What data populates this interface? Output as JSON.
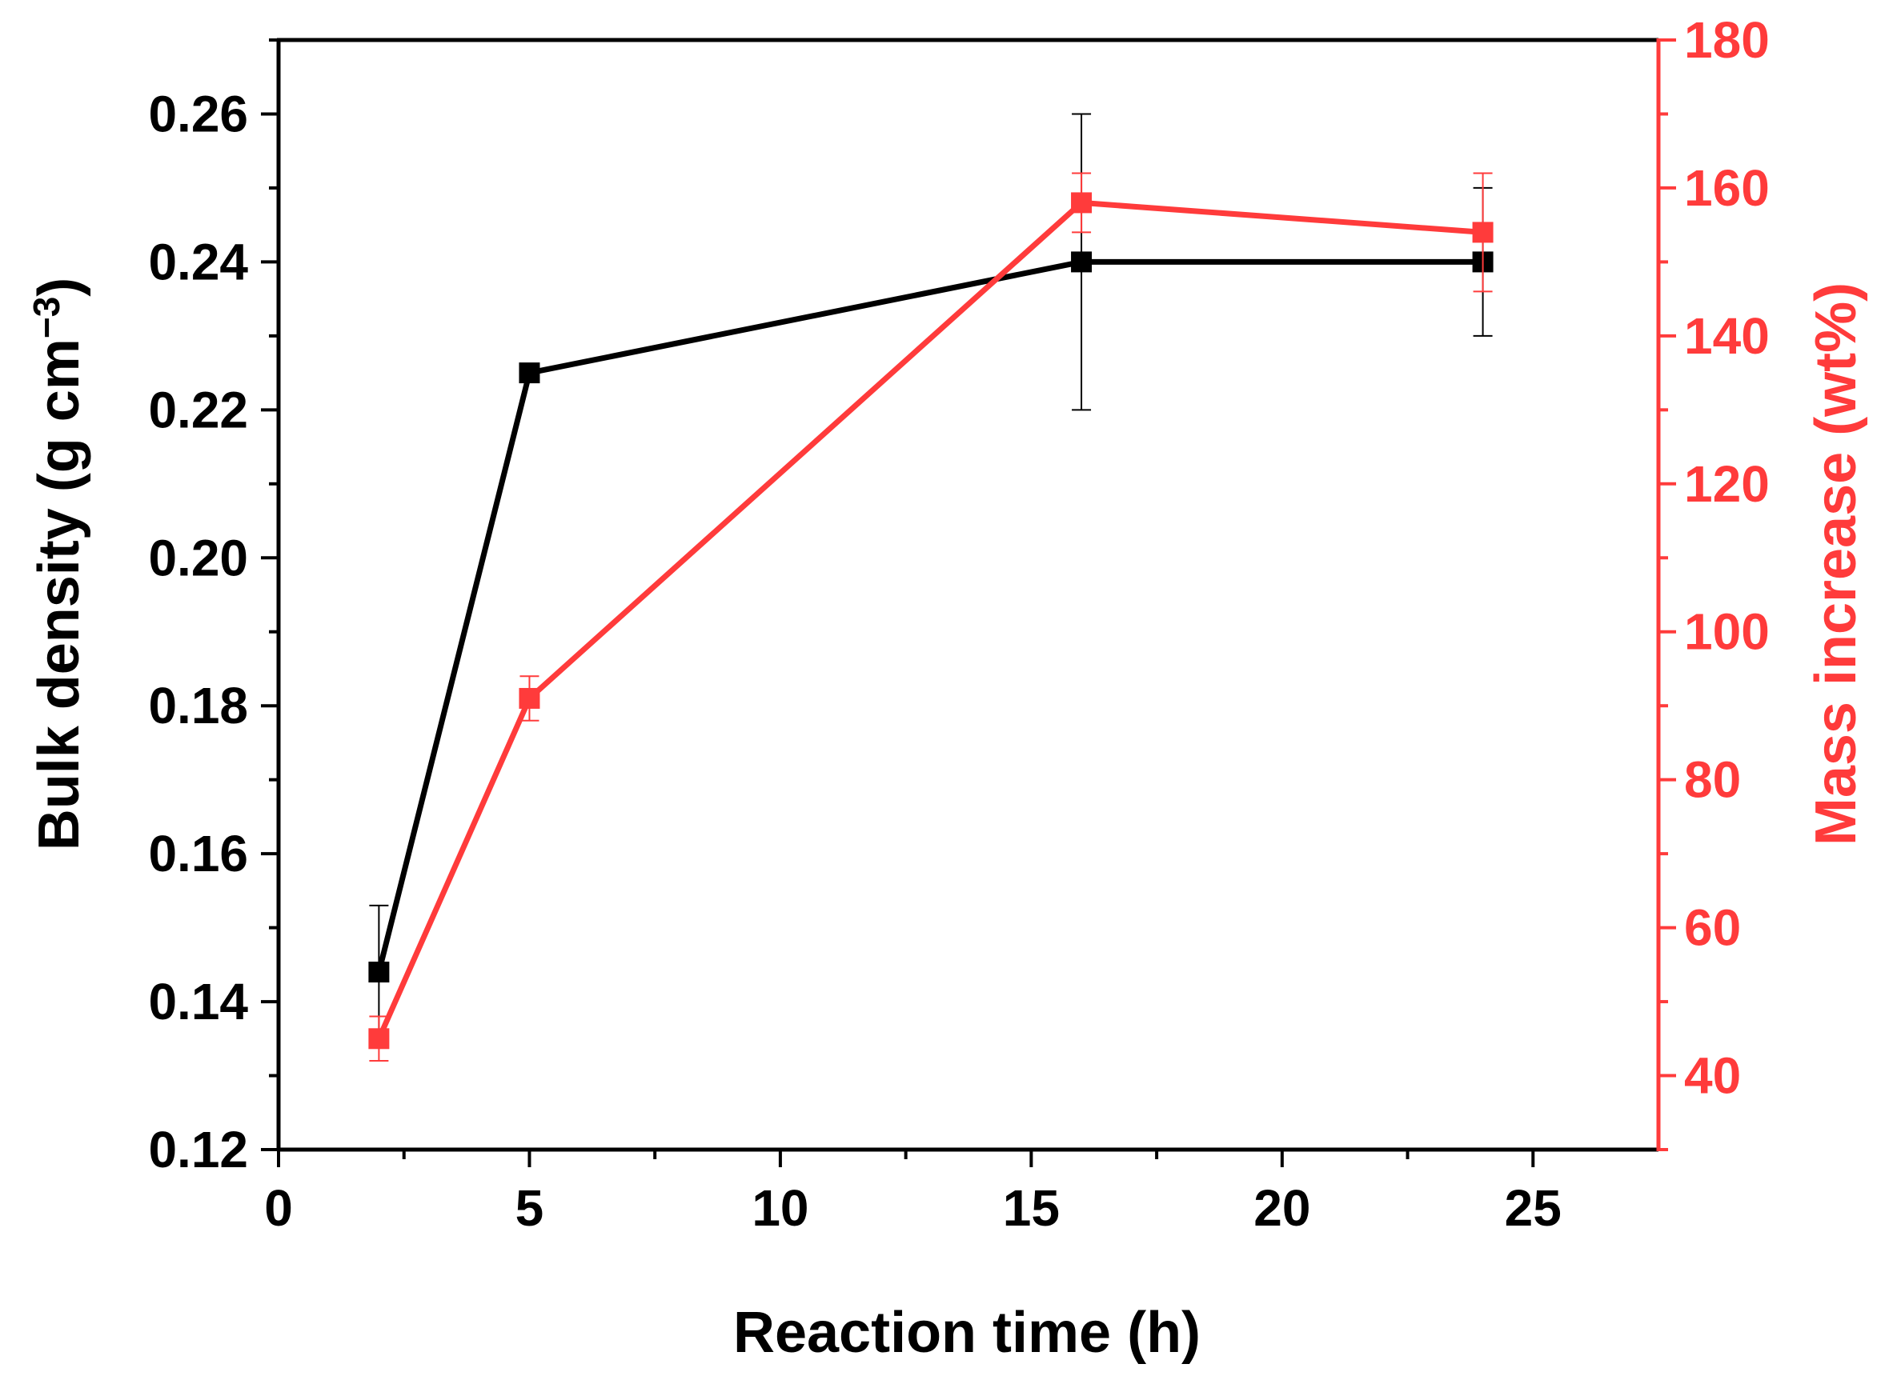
{
  "chart_data": {
    "type": "line",
    "title": "",
    "xlabel": "Reaction time (h)",
    "ylabel_left": {
      "prefix": "Bulk density (g cm",
      "sup": "−3",
      "suffix": ")"
    },
    "ylabel_right": "Mass increase (wt%)",
    "xlim": [
      0,
      27.5
    ],
    "ylim_left": [
      0.12,
      0.27
    ],
    "ylim_right": [
      30,
      180
    ],
    "x_ticks": [
      0,
      5,
      10,
      15,
      20,
      25
    ],
    "x_tick_labels": [
      "0",
      "5",
      "10",
      "15",
      "20",
      "25"
    ],
    "y_left_ticks": [
      0.12,
      0.14,
      0.16,
      0.18,
      0.2,
      0.22,
      0.24,
      0.26
    ],
    "y_left_tick_labels": [
      "0.12",
      "0.14",
      "0.16",
      "0.18",
      "0.20",
      "0.22",
      "0.24",
      "0.26"
    ],
    "y_right_ticks": [
      40,
      60,
      80,
      100,
      120,
      140,
      160,
      180
    ],
    "y_right_tick_labels": [
      "40",
      "60",
      "80",
      "100",
      "120",
      "140",
      "160",
      "180"
    ],
    "series": [
      {
        "name": "Bulk density",
        "axis": "left",
        "color": "#000000",
        "x": [
          2,
          5,
          16,
          24
        ],
        "values": [
          0.144,
          0.225,
          0.24,
          0.24
        ],
        "errors": [
          0.009,
          0.0,
          0.02,
          0.01
        ]
      },
      {
        "name": "Mass increase",
        "axis": "right",
        "color": "#ff3b3b",
        "x": [
          2,
          5,
          16,
          24
        ],
        "values": [
          45,
          91,
          158,
          154
        ],
        "errors": [
          3,
          3,
          4,
          8
        ]
      }
    ]
  }
}
